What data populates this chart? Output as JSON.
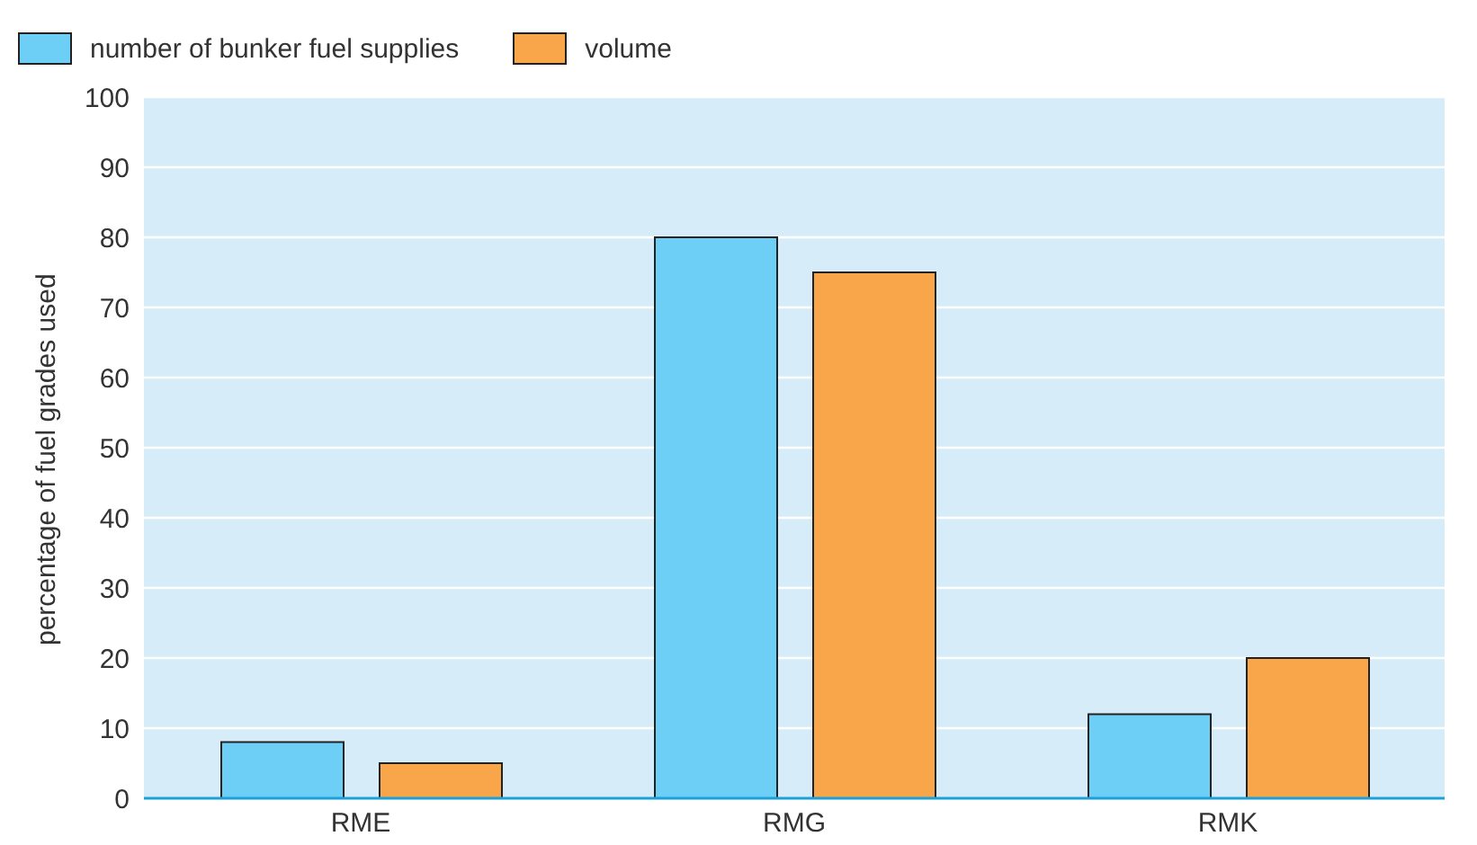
{
  "chart_data": {
    "type": "bar",
    "ylabel": "percentage of fuel grades used",
    "categories": [
      "RME",
      "RMG",
      "RMK"
    ],
    "series": [
      {
        "name": "number of bunker fuel supplies",
        "color": "#6dcff6",
        "values": [
          8,
          80,
          12
        ]
      },
      {
        "name": "volume",
        "color": "#f9a54a",
        "values": [
          5,
          75,
          20
        ]
      }
    ],
    "ylim": [
      0,
      100
    ],
    "yticks": [
      0,
      10,
      20,
      30,
      40,
      50,
      60,
      70,
      80,
      90,
      100
    ],
    "grid": "y",
    "legend": "top left"
  }
}
